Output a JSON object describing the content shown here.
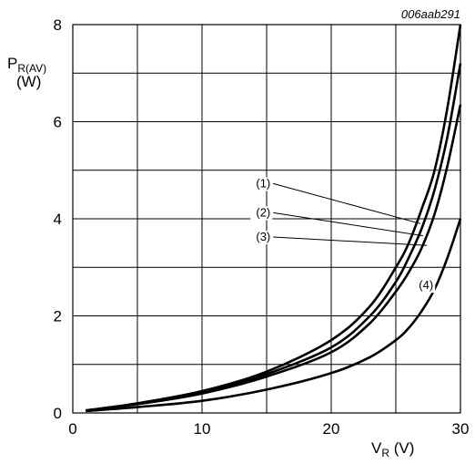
{
  "chart_data": {
    "type": "line",
    "code": "006aab291",
    "ylabel": {
      "main": "P",
      "sub": "R(AV)",
      "unit": "(W)"
    },
    "xlabel": {
      "main": "V",
      "sub": "R",
      "unit": " (V)"
    },
    "xlim": [
      0,
      30
    ],
    "ylim": [
      0,
      8
    ],
    "xticks": [
      0,
      10,
      20,
      30
    ],
    "yticks": [
      0,
      2,
      4,
      6,
      8
    ],
    "grid": true,
    "series": [
      {
        "name": "(1)",
        "x": [
          1,
          5,
          10,
          15,
          20,
          23,
          25,
          26,
          27,
          28,
          29,
          30
        ],
        "y": [
          0.05,
          0.2,
          0.45,
          0.85,
          1.5,
          2.2,
          3.0,
          3.5,
          4.2,
          5.0,
          6.3,
          8.0
        ]
      },
      {
        "name": "(2)",
        "x": [
          1,
          5,
          10,
          15,
          20,
          23,
          25,
          26,
          27,
          28,
          29,
          30
        ],
        "y": [
          0.05,
          0.19,
          0.42,
          0.8,
          1.35,
          2.0,
          2.7,
          3.2,
          3.8,
          4.6,
          5.7,
          7.2
        ]
      },
      {
        "name": "(3)",
        "x": [
          1,
          5,
          10,
          15,
          20,
          23,
          25,
          26,
          27,
          28,
          29,
          30
        ],
        "y": [
          0.05,
          0.18,
          0.4,
          0.75,
          1.25,
          1.85,
          2.5,
          2.9,
          3.4,
          4.1,
          5.1,
          6.35
        ]
      },
      {
        "name": "(4)",
        "x": [
          1,
          5,
          10,
          15,
          20,
          23,
          25,
          26,
          27,
          28,
          29,
          30
        ],
        "y": [
          0.04,
          0.12,
          0.25,
          0.48,
          0.82,
          1.15,
          1.5,
          1.75,
          2.1,
          2.55,
          3.2,
          4.0
        ]
      }
    ],
    "annotations": [
      {
        "text": "(1)",
        "label_at": [
          15.3,
          4.65
        ],
        "target": [
          26.9,
          3.9
        ]
      },
      {
        "text": "(2)",
        "label_at": [
          15.3,
          4.05
        ],
        "target": [
          27.1,
          3.65
        ]
      },
      {
        "text": "(3)",
        "label_at": [
          15.3,
          3.55
        ],
        "target": [
          27.4,
          3.45
        ]
      },
      {
        "text": "(4)",
        "label_at": [
          27.9,
          2.55
        ],
        "target": null
      }
    ]
  }
}
